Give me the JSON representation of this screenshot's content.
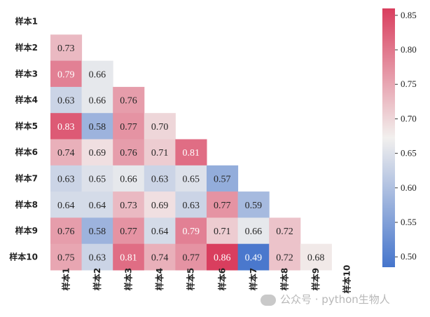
{
  "chart_data": {
    "type": "heatmap",
    "mask": "upper-triangle-including-diagonal",
    "row_labels": [
      "样本1",
      "样本2",
      "样本3",
      "样本4",
      "样本5",
      "样本6",
      "样本7",
      "样本8",
      "样本9",
      "样本10"
    ],
    "col_labels": [
      "样本1",
      "样本2",
      "样本3",
      "样本4",
      "样本5",
      "样本6",
      "样本7",
      "样本8",
      "样本9",
      "样本10"
    ],
    "values": [
      [],
      [
        0.73
      ],
      [
        0.79,
        0.66
      ],
      [
        0.63,
        0.66,
        0.76
      ],
      [
        0.83,
        0.58,
        0.77,
        0.7
      ],
      [
        0.74,
        0.69,
        0.76,
        0.71,
        0.81
      ],
      [
        0.63,
        0.65,
        0.66,
        0.63,
        0.65,
        0.57
      ],
      [
        0.64,
        0.64,
        0.73,
        0.69,
        0.63,
        0.77,
        0.59
      ],
      [
        0.76,
        0.58,
        0.77,
        0.64,
        0.79,
        0.71,
        0.66,
        0.72
      ],
      [
        0.75,
        0.63,
        0.81,
        0.74,
        0.77,
        0.86,
        0.49,
        0.72,
        0.68
      ]
    ],
    "value_range": [
      0.485,
      0.86
    ],
    "colormap": {
      "low": "#4575cc",
      "mid": "#f2f0ee",
      "high": "#d93e5e"
    },
    "colorbar_ticks": [
      "0.50",
      "0.55",
      "0.60",
      "0.65",
      "0.70",
      "0.75",
      "0.80",
      "0.85"
    ]
  },
  "watermark": {
    "text": "公众号 · python生物人"
  }
}
